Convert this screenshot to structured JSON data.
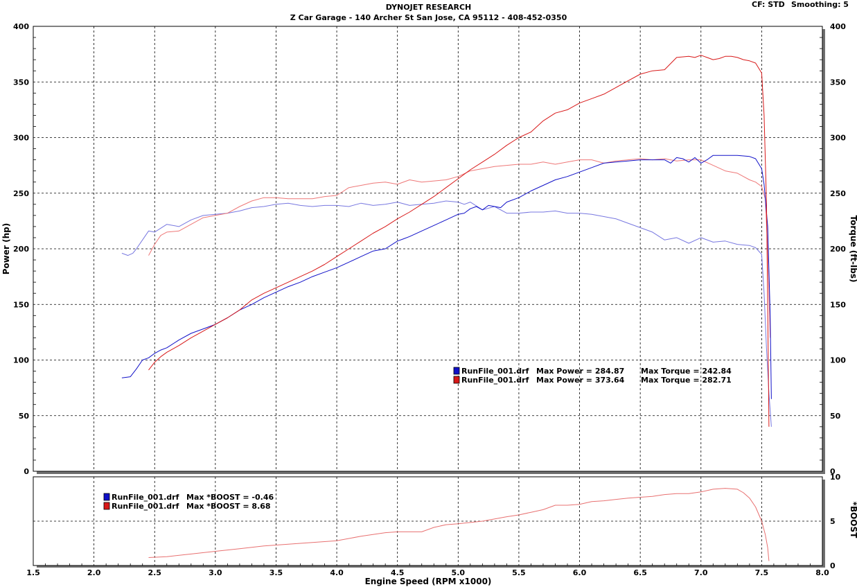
{
  "header": {
    "title": "DYNOJET RESEARCH",
    "subtitle": "Z Car Garage - 140 Archer St San Jose, CA 95112 - 408-452-0350",
    "cf_label": "CF: STD",
    "smoothing_label": "Smoothing: 5"
  },
  "colors": {
    "run1": "#1010c8",
    "run2": "#d81818",
    "run1_light": "#7777e0",
    "run2_light": "#ee7777",
    "boost_curve": "#e87070",
    "grid": "#000000",
    "frame_shadow": "#707070"
  },
  "legend_main": [
    {
      "file": "RunFile_001.drf",
      "max_power_label": "Max Power = 284.87",
      "max_torque_label": "Max Torque = 242.84"
    },
    {
      "file": "RunFile_001.drf",
      "max_power_label": "Max Power = 373.64",
      "max_torque_label": "Max Torque = 282.71"
    }
  ],
  "legend_boost": [
    {
      "file": "RunFile_001.drf",
      "label": "Max *BOOST = -0.46"
    },
    {
      "file": "RunFile_001.drf",
      "label": "Max *BOOST = 8.68"
    }
  ],
  "chart_data": [
    {
      "type": "line",
      "xlabel": "Engine Speed (RPM x1000)",
      "ylabel": "Power (hp)",
      "y2label": "Torque (ft-lbs)",
      "xlim": [
        1.5,
        8.0
      ],
      "ylim": [
        0,
        400
      ],
      "y2lim": [
        0,
        400
      ],
      "x_ticks": [
        "1.5",
        "2.0",
        "2.5",
        "3.0",
        "3.5",
        "4.0",
        "4.5",
        "5.0",
        "5.5",
        "6.0",
        "6.5",
        "7.0",
        "7.5",
        "8.0"
      ],
      "y_ticks": [
        "0",
        "50",
        "100",
        "150",
        "200",
        "250",
        "300",
        "350",
        "400"
      ],
      "y2_ticks": [
        "0",
        "50",
        "100",
        "150",
        "200",
        "250",
        "300",
        "350",
        "400"
      ],
      "grid": true,
      "series": [
        {
          "name": "RunFile_001.drf Power",
          "color_key": "run1",
          "x": [
            2.23,
            2.3,
            2.35,
            2.4,
            2.45,
            2.5,
            2.55,
            2.6,
            2.7,
            2.8,
            2.9,
            3.0,
            3.1,
            3.2,
            3.3,
            3.4,
            3.5,
            3.6,
            3.7,
            3.8,
            3.9,
            4.0,
            4.1,
            4.2,
            4.3,
            4.4,
            4.5,
            4.55,
            4.6,
            4.7,
            4.8,
            4.9,
            5.0,
            5.05,
            5.1,
            5.15,
            5.2,
            5.25,
            5.3,
            5.35,
            5.4,
            5.5,
            5.6,
            5.7,
            5.8,
            5.9,
            6.0,
            6.1,
            6.2,
            6.3,
            6.4,
            6.5,
            6.6,
            6.7,
            6.75,
            6.8,
            6.85,
            6.9,
            6.95,
            7.0,
            7.05,
            7.1,
            7.2,
            7.3,
            7.4,
            7.45,
            7.5,
            7.52,
            7.55,
            7.57,
            7.58
          ],
          "y": [
            84,
            85,
            92,
            100,
            102,
            106,
            109,
            111,
            118,
            124,
            128,
            132,
            138,
            145,
            150,
            156,
            161,
            166,
            170,
            175,
            179,
            183,
            188,
            193,
            198,
            200,
            207,
            209,
            211,
            216,
            221,
            226,
            231,
            232,
            236,
            238,
            235,
            239,
            238,
            237,
            242,
            246,
            252,
            257,
            262,
            265,
            269,
            273,
            277,
            278,
            279,
            280,
            280,
            280,
            277,
            282,
            281,
            278,
            282,
            277,
            280,
            284,
            284,
            284,
            283,
            281,
            272,
            258,
            220,
            140,
            65
          ]
        },
        {
          "name": "RunFile_001.drf Power",
          "color_key": "run2",
          "x": [
            2.45,
            2.5,
            2.55,
            2.6,
            2.7,
            2.8,
            2.9,
            3.0,
            3.1,
            3.2,
            3.3,
            3.4,
            3.5,
            3.6,
            3.7,
            3.8,
            3.9,
            4.0,
            4.1,
            4.2,
            4.3,
            4.4,
            4.5,
            4.6,
            4.7,
            4.8,
            4.9,
            5.0,
            5.1,
            5.2,
            5.3,
            5.4,
            5.5,
            5.6,
            5.7,
            5.8,
            5.9,
            6.0,
            6.1,
            6.2,
            6.3,
            6.4,
            6.5,
            6.6,
            6.7,
            6.8,
            6.9,
            6.95,
            7.0,
            7.05,
            7.1,
            7.15,
            7.2,
            7.25,
            7.3,
            7.35,
            7.4,
            7.45,
            7.5,
            7.52,
            7.54,
            7.55,
            7.56
          ],
          "y": [
            91,
            98,
            103,
            107,
            113,
            120,
            126,
            132,
            138,
            145,
            154,
            160,
            165,
            170,
            175,
            180,
            186,
            193,
            200,
            207,
            214,
            220,
            227,
            233,
            240,
            247,
            255,
            263,
            271,
            278,
            285,
            293,
            300,
            305,
            315,
            322,
            325,
            331,
            335,
            339,
            345,
            351,
            357,
            360,
            361,
            372,
            373,
            372,
            374,
            372,
            370,
            371,
            373,
            373,
            372,
            370,
            369,
            367,
            358,
            320,
            240,
            150,
            40
          ]
        },
        {
          "name": "RunFile_001.drf Torque",
          "color_key": "run1_light",
          "axis": "y2",
          "x": [
            2.23,
            2.28,
            2.32,
            2.35,
            2.4,
            2.45,
            2.5,
            2.6,
            2.7,
            2.8,
            2.9,
            3.0,
            3.1,
            3.2,
            3.3,
            3.4,
            3.5,
            3.6,
            3.7,
            3.8,
            3.9,
            4.0,
            4.1,
            4.2,
            4.3,
            4.4,
            4.5,
            4.6,
            4.7,
            4.8,
            4.9,
            5.0,
            5.05,
            5.1,
            5.2,
            5.3,
            5.4,
            5.5,
            5.6,
            5.7,
            5.8,
            5.9,
            6.0,
            6.1,
            6.2,
            6.3,
            6.4,
            6.5,
            6.6,
            6.7,
            6.8,
            6.9,
            7.0,
            7.1,
            7.2,
            7.3,
            7.4,
            7.45,
            7.5,
            7.52,
            7.54,
            7.56,
            7.58
          ],
          "y": [
            196,
            194,
            196,
            200,
            208,
            216,
            215,
            222,
            220,
            226,
            230,
            231,
            232,
            234,
            237,
            238,
            240,
            241,
            239,
            238,
            239,
            239,
            238,
            241,
            239,
            240,
            242,
            239,
            240,
            241,
            243,
            242,
            240,
            242,
            235,
            238,
            232,
            232,
            233,
            233,
            234,
            232,
            232,
            231,
            229,
            227,
            223,
            219,
            215,
            208,
            210,
            205,
            210,
            206,
            207,
            204,
            203,
            201,
            195,
            160,
            110,
            70,
            40
          ]
        },
        {
          "name": "RunFile_001.drf Torque",
          "color_key": "run2_light",
          "axis": "y2",
          "x": [
            2.45,
            2.5,
            2.55,
            2.6,
            2.7,
            2.8,
            2.9,
            3.0,
            3.1,
            3.2,
            3.3,
            3.4,
            3.5,
            3.6,
            3.7,
            3.8,
            3.9,
            4.0,
            4.1,
            4.2,
            4.3,
            4.4,
            4.5,
            4.6,
            4.7,
            4.8,
            4.9,
            5.0,
            5.1,
            5.2,
            5.3,
            5.4,
            5.5,
            5.6,
            5.7,
            5.8,
            5.9,
            6.0,
            6.1,
            6.2,
            6.3,
            6.4,
            6.5,
            6.6,
            6.7,
            6.8,
            6.9,
            7.0,
            7.1,
            7.2,
            7.3,
            7.4,
            7.45,
            7.5,
            7.53,
            7.55,
            7.57
          ],
          "y": [
            194,
            204,
            212,
            215,
            216,
            222,
            228,
            230,
            232,
            238,
            243,
            246,
            246,
            245,
            245,
            245,
            247,
            248,
            255,
            257,
            259,
            260,
            258,
            262,
            260,
            261,
            262,
            265,
            270,
            272,
            274,
            275,
            276,
            276,
            278,
            276,
            278,
            280,
            280,
            277,
            279,
            280,
            281,
            280,
            281,
            279,
            280,
            280,
            275,
            270,
            268,
            262,
            260,
            256,
            245,
            200,
            120
          ]
        }
      ]
    },
    {
      "type": "line",
      "ylabel": "*BOOST",
      "ylim": [
        0,
        10
      ],
      "y_ticks": [
        "0",
        "5",
        "10"
      ],
      "xlim": [
        1.5,
        8.0
      ],
      "grid": true,
      "series": [
        {
          "name": "RunFile_001.drf *BOOST",
          "color_key": "boost_curve",
          "x": [
            2.45,
            2.6,
            2.8,
            3.0,
            3.2,
            3.4,
            3.6,
            3.8,
            4.0,
            4.2,
            4.4,
            4.5,
            4.6,
            4.7,
            4.8,
            4.9,
            5.0,
            5.2,
            5.4,
            5.5,
            5.6,
            5.7,
            5.8,
            5.9,
            6.0,
            6.1,
            6.2,
            6.4,
            6.6,
            6.7,
            6.8,
            6.9,
            7.0,
            7.1,
            7.2,
            7.3,
            7.35,
            7.4,
            7.45,
            7.5,
            7.53,
            7.55,
            7.56
          ],
          "y": [
            0.9,
            1.0,
            1.3,
            1.6,
            1.9,
            2.2,
            2.4,
            2.6,
            2.8,
            3.3,
            3.7,
            3.8,
            3.8,
            3.8,
            4.3,
            4.6,
            4.7,
            5.0,
            5.5,
            5.7,
            6.0,
            6.3,
            6.8,
            6.8,
            6.9,
            7.2,
            7.3,
            7.6,
            7.8,
            8.0,
            8.1,
            8.1,
            8.3,
            8.6,
            8.7,
            8.6,
            8.2,
            7.6,
            6.6,
            5.0,
            3.5,
            2.0,
            0.5
          ]
        }
      ]
    }
  ]
}
